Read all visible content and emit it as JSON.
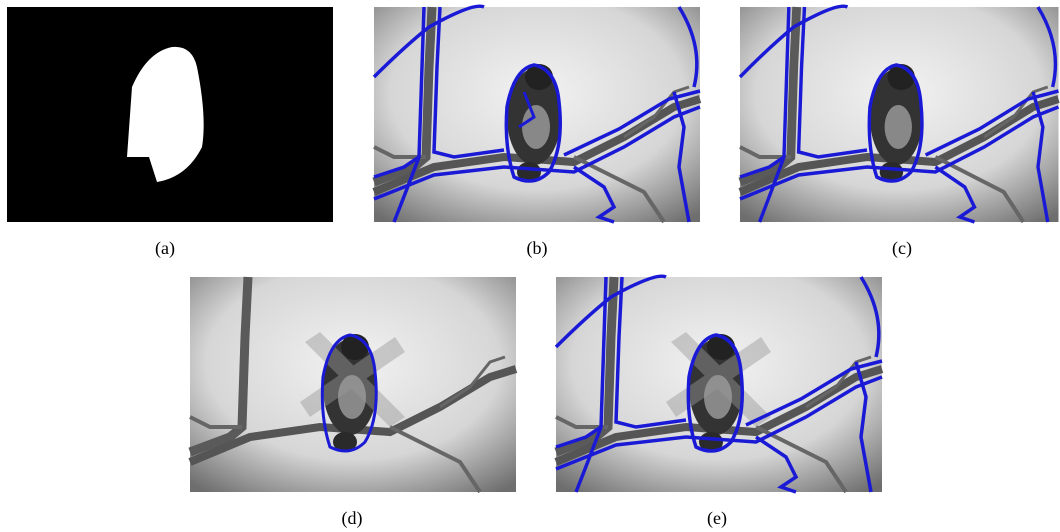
{
  "figure": {
    "panels": [
      {
        "caption": "(a)"
      },
      {
        "caption": "(b)"
      },
      {
        "caption": "(c)"
      },
      {
        "caption": "(d)"
      },
      {
        "caption": "(e)"
      }
    ]
  }
}
